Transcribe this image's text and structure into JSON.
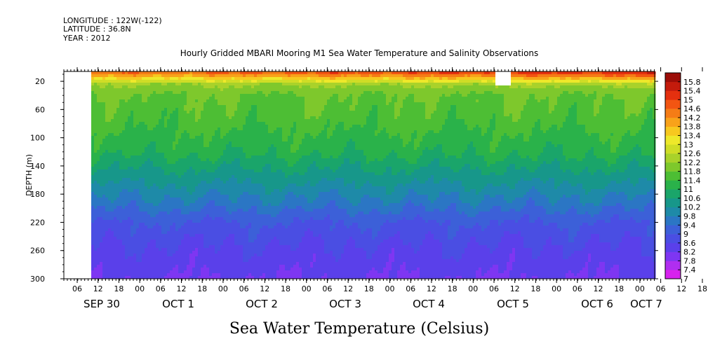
{
  "header": {
    "longitude": "LONGITUDE : 122W(-122)",
    "latitude": "LATITUDE : 36.8N",
    "year": "YEAR : 2012"
  },
  "chart_data": {
    "type": "heatmap",
    "title": "Hourly Gridded MBARI Mooring M1 Sea Water Temperature and Salinity Observations",
    "xlabel": "Sea Water Temperature (Celsius)",
    "ylabel": "DEPTH (m)",
    "y_reversed": true,
    "ylim": [
      300,
      6
    ],
    "y_ticks": [
      20,
      60,
      100,
      140,
      180,
      220,
      260,
      300
    ],
    "x_hour_ticks": [
      "06",
      "12",
      "18",
      "00",
      "06",
      "12",
      "18",
      "00",
      "06",
      "12",
      "18",
      "00",
      "06",
      "12",
      "18",
      "00",
      "06",
      "12",
      "18",
      "00",
      "06",
      "12",
      "18",
      "00",
      "06",
      "12",
      "18",
      "00",
      "06",
      "12",
      "18",
      "00"
    ],
    "x_date_labels": [
      "SEP 30",
      "OCT  1",
      "OCT  2",
      "OCT  3",
      "OCT  4",
      "OCT  5",
      "OCT  6",
      "OCT  7"
    ],
    "colorbar_levels": [
      "7",
      "7.4",
      "7.8",
      "8.2",
      "8.6",
      "9",
      "9.4",
      "9.8",
      "10.2",
      "10.6",
      "11",
      "11.4",
      "11.8",
      "12.2",
      "12.6",
      "13",
      "13.4",
      "13.8",
      "14.2",
      "14.6",
      "15",
      "15.4",
      "15.8"
    ],
    "colorbar_colors": [
      "#d722ee",
      "#b02ef0",
      "#7e36f2",
      "#5a40ea",
      "#4a4ee3",
      "#3c60d8",
      "#2b76c4",
      "#1e8aa8",
      "#17978a",
      "#1aa56a",
      "#2ab24a",
      "#4dbe34",
      "#7ec82c",
      "#a9d22a",
      "#cfdd26",
      "#eee82a",
      "#f7c81f",
      "#f8a21a",
      "#f57c16",
      "#f25512",
      "#e4300f",
      "#c41b0c",
      "#9c0d08"
    ],
    "depth_profile": [
      {
        "depth": 6,
        "temp": 14.6
      },
      {
        "depth": 14,
        "temp": 13.6
      },
      {
        "depth": 24,
        "temp": 12.2
      },
      {
        "depth": 40,
        "temp": 11.8
      },
      {
        "depth": 80,
        "temp": 11.5
      },
      {
        "depth": 120,
        "temp": 11.1
      },
      {
        "depth": 160,
        "temp": 10.3
      },
      {
        "depth": 190,
        "temp": 9.7
      },
      {
        "depth": 220,
        "temp": 9.0
      },
      {
        "depth": 260,
        "temp": 8.5
      },
      {
        "depth": 300,
        "temp": 8.2
      }
    ],
    "missing_data": "no data from start of record to about SEP 30 09:00, and a small gap near the surface around OCT 5 06:00-09:00"
  }
}
